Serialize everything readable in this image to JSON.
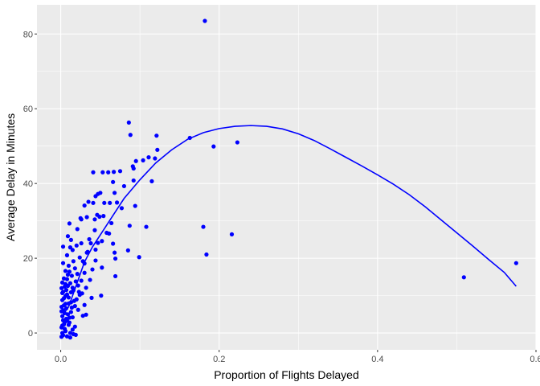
{
  "chart_data": {
    "type": "scatter",
    "title": "",
    "xlabel": "Proportion of Flights Delayed",
    "ylabel": "Average Delay in Minutes",
    "xlim": [
      -0.03,
      0.6
    ],
    "ylim": [
      -4.5,
      87.8
    ],
    "x_ticks": [
      0.0,
      0.2,
      0.4,
      0.6
    ],
    "x_tick_labels": [
      "0.0",
      "0.2",
      "0.4",
      "0.6"
    ],
    "y_ticks": [
      0,
      20,
      40,
      60,
      80
    ],
    "y_tick_labels": [
      "0",
      "20",
      "40",
      "60",
      "80"
    ],
    "grid": true,
    "legend": "none",
    "colors": {
      "panel_background": "#ebebeb",
      "gridline": "#ffffff",
      "point": "#0000ff",
      "smooth_line": "#0000ff"
    },
    "series": [
      {
        "kind": "points",
        "points": [
          [
            0.182,
            83.5
          ],
          [
            0.086,
            56.3
          ],
          [
            0.121,
            52.8
          ],
          [
            0.088,
            53.0
          ],
          [
            0.163,
            52.2
          ],
          [
            0.223,
            51.0
          ],
          [
            0.193,
            49.9
          ],
          [
            0.122,
            49.0
          ],
          [
            0.111,
            47.0
          ],
          [
            0.095,
            46.0
          ],
          [
            0.104,
            46.2
          ],
          [
            0.091,
            44.6
          ],
          [
            0.119,
            46.7
          ],
          [
            0.075,
            43.3
          ],
          [
            0.06,
            43.0
          ],
          [
            0.053,
            43.0
          ],
          [
            0.067,
            43.1
          ],
          [
            0.041,
            43.0
          ],
          [
            0.092,
            44.0
          ],
          [
            0.066,
            40.4
          ],
          [
            0.092,
            40.8
          ],
          [
            0.115,
            40.6
          ],
          [
            0.08,
            39.3
          ],
          [
            0.068,
            37.5
          ],
          [
            0.05,
            37.5
          ],
          [
            0.044,
            36.6
          ],
          [
            0.047,
            37.2
          ],
          [
            0.071,
            34.9
          ],
          [
            0.094,
            34.0
          ],
          [
            0.077,
            33.4
          ],
          [
            0.062,
            34.8
          ],
          [
            0.055,
            34.8
          ],
          [
            0.041,
            34.8
          ],
          [
            0.035,
            35.1
          ],
          [
            0.03,
            34.1
          ],
          [
            0.046,
            31.6
          ],
          [
            0.049,
            31.1
          ],
          [
            0.033,
            31.0
          ],
          [
            0.025,
            30.7
          ],
          [
            0.054,
            31.3
          ],
          [
            0.043,
            30.4
          ],
          [
            0.026,
            30.4
          ],
          [
            0.011,
            29.3
          ],
          [
            0.087,
            28.7
          ],
          [
            0.108,
            28.4
          ],
          [
            0.18,
            28.4
          ],
          [
            0.021,
            27.8
          ],
          [
            0.061,
            26.6
          ],
          [
            0.009,
            25.9
          ],
          [
            0.052,
            24.6
          ],
          [
            0.047,
            24.1
          ],
          [
            0.036,
            25.1
          ],
          [
            0.013,
            24.9
          ],
          [
            0.02,
            23.4
          ],
          [
            0.003,
            23.1
          ],
          [
            0.026,
            24.0
          ],
          [
            0.066,
            23.9
          ],
          [
            0.044,
            22.3
          ],
          [
            0.034,
            21.7
          ],
          [
            0.015,
            22.2
          ],
          [
            0.216,
            26.4
          ],
          [
            0.184,
            21.0
          ],
          [
            0.085,
            22.1
          ],
          [
            0.068,
            21.5
          ],
          [
            0.099,
            20.3
          ],
          [
            0.069,
            19.9
          ],
          [
            0.044,
            19.4
          ],
          [
            0.03,
            18.6
          ],
          [
            0.016,
            19.2
          ],
          [
            0.003,
            18.7
          ],
          [
            0.575,
            18.7
          ],
          [
            0.509,
            14.9
          ],
          [
            0.052,
            17.5
          ],
          [
            0.04,
            17.0
          ],
          [
            0.03,
            16.1
          ],
          [
            0.021,
            15.8
          ],
          [
            0.011,
            16.4
          ],
          [
            0.069,
            15.2
          ],
          [
            0.014,
            15.3
          ],
          [
            0.037,
            14.2
          ],
          [
            0.026,
            14.0
          ],
          [
            0.019,
            13.8
          ],
          [
            0.008,
            14.4
          ],
          [
            0.002,
            13.5
          ],
          [
            0.032,
            12.1
          ],
          [
            0.022,
            12.7
          ],
          [
            0.015,
            12.1
          ],
          [
            0.005,
            12.4
          ],
          [
            0.051,
            10.0
          ],
          [
            0.024,
            10.2
          ],
          [
            0.013,
            10.9
          ],
          [
            0.002,
            10.7
          ],
          [
            0.039,
            9.4
          ],
          [
            0.01,
            9.5
          ],
          [
            0.03,
            7.5
          ],
          [
            0.018,
            7.2
          ],
          [
            0.006,
            7.8
          ],
          [
            0.001,
            7.0
          ],
          [
            0.022,
            6.2
          ],
          [
            0.013,
            5.6
          ],
          [
            0.005,
            5.3
          ],
          [
            0.002,
            4.5
          ],
          [
            0.032,
            4.9
          ],
          [
            0.028,
            4.6
          ],
          [
            0.015,
            4.2
          ],
          [
            0.008,
            3.3
          ],
          [
            0.011,
            2.8
          ],
          [
            0.004,
            2.3
          ],
          [
            0.001,
            1.5
          ],
          [
            0.018,
            1.7
          ],
          [
            0.006,
            0.5
          ],
          [
            0.002,
            0.0
          ],
          [
            0.012,
            0.0
          ],
          [
            0.016,
            -0.3
          ],
          [
            0.008,
            -0.9
          ],
          [
            0.003,
            -0.6
          ],
          [
            0.012,
            -1.2
          ],
          [
            0.001,
            -1.0
          ],
          [
            0.019,
            -0.5
          ],
          [
            0.005,
            2.9
          ],
          [
            0.007,
            11.5
          ],
          [
            0.009,
            12.6
          ],
          [
            0.01,
            7.9
          ],
          [
            0.004,
            9.3
          ],
          [
            0.006,
            13.1
          ],
          [
            0.003,
            6.1
          ],
          [
            0.002,
            8.8
          ],
          [
            0.011,
            4.1
          ],
          [
            0.008,
            10.3
          ],
          [
            0.014,
            6.8
          ],
          [
            0.017,
            8.6
          ],
          [
            0.007,
            3.8
          ],
          [
            0.001,
            12.0
          ],
          [
            0.003,
            11.0
          ],
          [
            0.004,
            14.6
          ],
          [
            0.009,
            15.6
          ],
          [
            0.012,
            13.3
          ],
          [
            0.016,
            11.4
          ],
          [
            0.02,
            9.0
          ],
          [
            0.023,
            11.0
          ],
          [
            0.027,
            10.6
          ],
          [
            0.018,
            17.3
          ],
          [
            0.024,
            20.2
          ],
          [
            0.028,
            19.2
          ],
          [
            0.033,
            21.5
          ],
          [
            0.038,
            24.0
          ],
          [
            0.043,
            27.5
          ],
          [
            0.058,
            26.8
          ],
          [
            0.064,
            29.4
          ],
          [
            0.008,
            20.8
          ],
          [
            0.012,
            22.9
          ],
          [
            0.01,
            18.0
          ],
          [
            0.006,
            16.6
          ],
          [
            0.003,
            3.4
          ],
          [
            0.001,
            5.8
          ],
          [
            0.002,
            2.0
          ],
          [
            0.005,
            1.1
          ],
          [
            0.007,
            6.6
          ],
          [
            0.01,
            2.2
          ],
          [
            0.013,
            8.2
          ],
          [
            0.015,
            0.9
          ],
          [
            0.004,
            7.4
          ],
          [
            0.006,
            9.9
          ],
          [
            0.009,
            5.0
          ]
        ]
      },
      {
        "kind": "smooth",
        "points": [
          [
            0.003,
            5.0
          ],
          [
            0.01,
            7.0
          ],
          [
            0.02,
            13.0
          ],
          [
            0.03,
            19.0
          ],
          [
            0.04,
            23.0
          ],
          [
            0.06,
            29.5
          ],
          [
            0.08,
            36.0
          ],
          [
            0.1,
            41.0
          ],
          [
            0.12,
            45.5
          ],
          [
            0.14,
            49.0
          ],
          [
            0.16,
            51.8
          ],
          [
            0.18,
            53.6
          ],
          [
            0.2,
            54.7
          ],
          [
            0.22,
            55.3
          ],
          [
            0.24,
            55.5
          ],
          [
            0.26,
            55.3
          ],
          [
            0.28,
            54.6
          ],
          [
            0.3,
            53.3
          ],
          [
            0.32,
            51.5
          ],
          [
            0.34,
            49.3
          ],
          [
            0.36,
            47.0
          ],
          [
            0.38,
            44.7
          ],
          [
            0.4,
            42.3
          ],
          [
            0.42,
            39.8
          ],
          [
            0.44,
            37.0
          ],
          [
            0.46,
            33.8
          ],
          [
            0.48,
            30.3
          ],
          [
            0.5,
            26.8
          ],
          [
            0.52,
            23.3
          ],
          [
            0.54,
            19.7
          ],
          [
            0.56,
            16.2
          ],
          [
            0.575,
            12.5
          ]
        ]
      }
    ]
  }
}
